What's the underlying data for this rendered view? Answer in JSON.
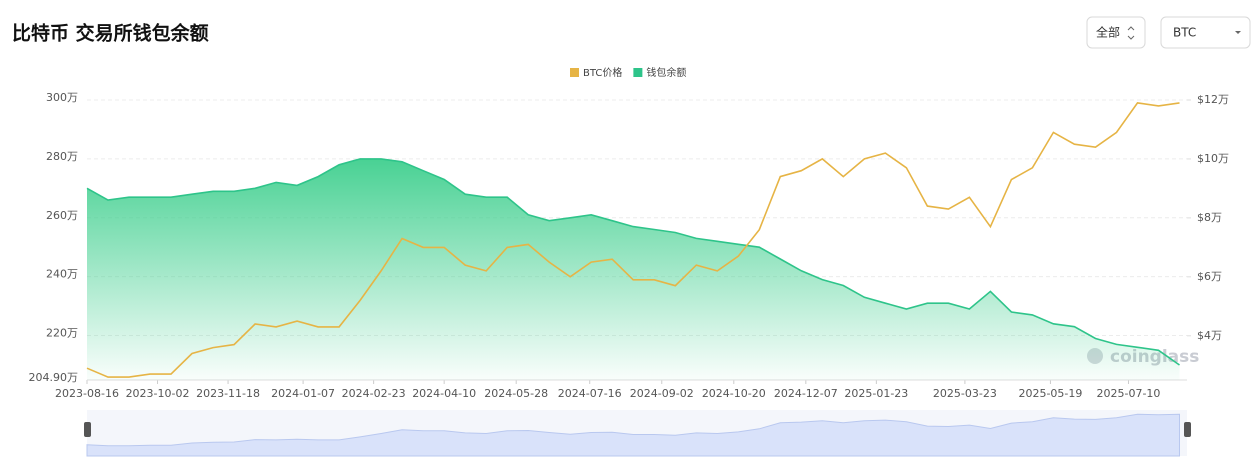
{
  "controls": [
    "全部",
    "BTC"
  ],
  "chart_data": {
    "type": "line",
    "title": "比特币 交易所钱包余额",
    "watermark": "coinglass",
    "grid": true,
    "x": [
      "2023-08-16",
      "2023-08-30",
      "2023-09-13",
      "2023-09-27",
      "2023-10-11",
      "2023-10-25",
      "2023-11-08",
      "2023-11-22",
      "2023-12-06",
      "2023-12-20",
      "2024-01-03",
      "2024-01-17",
      "2024-01-31",
      "2024-02-14",
      "2024-02-28",
      "2024-03-13",
      "2024-03-27",
      "2024-04-10",
      "2024-04-24",
      "2024-05-08",
      "2024-05-22",
      "2024-06-05",
      "2024-06-19",
      "2024-07-03",
      "2024-07-17",
      "2024-07-31",
      "2024-08-14",
      "2024-08-28",
      "2024-09-11",
      "2024-09-25",
      "2024-10-09",
      "2024-10-23",
      "2024-11-06",
      "2024-11-20",
      "2024-12-04",
      "2024-12-18",
      "2025-01-01",
      "2025-01-15",
      "2025-01-29",
      "2025-02-12",
      "2025-02-26",
      "2025-03-12",
      "2025-03-26",
      "2025-04-09",
      "2025-04-23",
      "2025-05-07",
      "2025-05-21",
      "2025-06-04",
      "2025-06-18",
      "2025-07-02",
      "2025-07-16",
      "2025-07-30",
      "2025-08-13"
    ],
    "xlim": [
      "2023-08-16",
      "2025-08-18"
    ],
    "xticks": [
      "2023-08-16",
      "2023-10-02",
      "2023-11-18",
      "2024-01-07",
      "2024-02-23",
      "2024-04-10",
      "2024-05-28",
      "2024-07-16",
      "2024-09-02",
      "2024-10-20",
      "2024-12-07",
      "2025-01-23",
      "2025-03-23",
      "2025-05-19",
      "2025-07-10"
    ],
    "ylim": [
      204.9,
      300
    ],
    "yticks": [
      {
        "value": 204.9,
        "label": "204.90万"
      },
      {
        "value": 220,
        "label": "220万"
      },
      {
        "value": 240,
        "label": "240万"
      },
      {
        "value": 260,
        "label": "260万"
      },
      {
        "value": 280,
        "label": "280万"
      },
      {
        "value": 300,
        "label": "300万"
      }
    ],
    "y2lim": [
      2.5,
      12
    ],
    "y2ticks": [
      {
        "value": 4,
        "label": "$4万"
      },
      {
        "value": 6,
        "label": "$6万"
      },
      {
        "value": 8,
        "label": "$8万"
      },
      {
        "value": 10,
        "label": "$10万"
      },
      {
        "value": 12,
        "label": "$12万"
      }
    ],
    "series": [
      {
        "name": "BTC价格",
        "color": "#e6b445",
        "axis": "y2",
        "values": [
          2.9,
          2.6,
          2.6,
          2.7,
          2.7,
          3.4,
          3.6,
          3.7,
          4.4,
          4.3,
          4.5,
          4.3,
          4.3,
          5.2,
          6.2,
          7.3,
          7.0,
          7.0,
          6.4,
          6.2,
          7.0,
          7.1,
          6.5,
          6.0,
          6.5,
          6.6,
          5.9,
          5.9,
          5.7,
          6.4,
          6.2,
          6.7,
          7.6,
          9.4,
          9.6,
          10.0,
          9.4,
          10.0,
          10.2,
          9.7,
          8.4,
          8.3,
          8.7,
          7.7,
          9.3,
          9.7,
          10.9,
          10.5,
          10.4,
          10.9,
          11.9,
          11.8,
          11.9
        ]
      },
      {
        "name": "钱包余额",
        "color": "#2ec48a",
        "values": [
          270,
          266,
          267,
          267,
          267,
          268,
          269,
          269,
          270,
          272,
          271,
          274,
          278,
          280,
          280,
          279,
          276,
          273,
          268,
          267,
          267,
          261,
          259,
          260,
          261,
          259,
          257,
          256,
          255,
          253,
          252,
          251,
          250,
          246,
          242,
          239,
          237,
          233,
          231,
          229,
          231,
          231,
          229,
          235,
          228,
          227,
          224,
          223,
          219,
          217,
          216,
          215,
          210
        ]
      }
    ]
  }
}
